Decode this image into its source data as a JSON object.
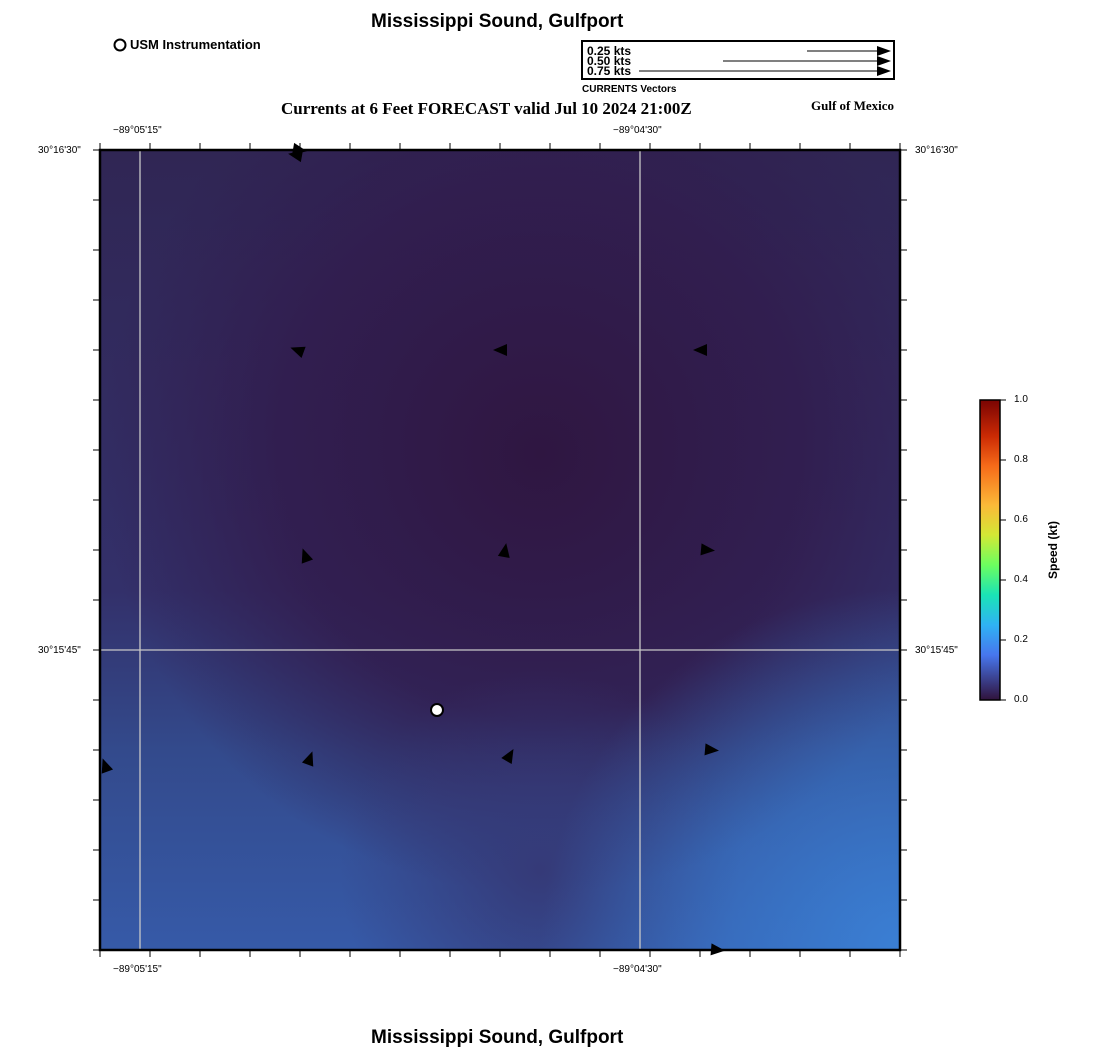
{
  "header": {
    "title": "Mississippi Sound, Gulfport",
    "subtitle": "Currents at 6 Feet FORECAST valid Jul 10 2024 21:00Z",
    "region": "Gulf of Mexico",
    "footer_title": "Mississippi Sound, Gulfport"
  },
  "station_legend": {
    "label": "USM Instrumentation"
  },
  "vector_legend": {
    "title": "CURRENTS Vectors",
    "entries": [
      {
        "label": "0.25 kts",
        "speed": 0.25
      },
      {
        "label": "0.50 kts",
        "speed": 0.5
      },
      {
        "label": "0.75 kts",
        "speed": 0.75
      }
    ]
  },
  "axes": {
    "lon_ticks": [
      "−89°05'15\"",
      "−89°04'30\""
    ],
    "lat_ticks": [
      "30°16'30\"",
      "30°15'45\""
    ]
  },
  "colorbar": {
    "label": "Speed (kt)",
    "min": 0.0,
    "max": 1.0,
    "ticks": [
      "1.0",
      "0.8",
      "0.6",
      "0.4",
      "0.2",
      "0.0"
    ],
    "colors": [
      "#7a0403",
      "#cb2a04",
      "#f66b19",
      "#fbb938",
      "#d3e835",
      "#6cfe5f",
      "#1ae4b6",
      "#2fb2f4",
      "#4776ee",
      "#30123b"
    ]
  },
  "map": {
    "field_colors": {
      "low": "#2f1641",
      "mid": "#34356e",
      "high": "#3a7fd4"
    },
    "vectors": [
      {
        "id": "v1",
        "dir_deg": 190,
        "speed": 0.05
      },
      {
        "id": "v2",
        "dir_deg": 200,
        "speed": 0.05
      },
      {
        "id": "v3",
        "dir_deg": 180,
        "speed": 0.05
      },
      {
        "id": "v4",
        "dir_deg": 180,
        "speed": 0.05
      },
      {
        "id": "v5",
        "dir_deg": 250,
        "speed": 0.05
      },
      {
        "id": "v6",
        "dir_deg": 280,
        "speed": 0.05
      },
      {
        "id": "v7",
        "dir_deg": 5,
        "speed": 0.05
      },
      {
        "id": "v8",
        "dir_deg": 250,
        "speed": 0.05
      },
      {
        "id": "v9",
        "dir_deg": 290,
        "speed": 0.05
      },
      {
        "id": "v10",
        "dir_deg": 300,
        "speed": 0.05
      },
      {
        "id": "v11",
        "dir_deg": 5,
        "speed": 0.05
      },
      {
        "id": "v12",
        "dir_deg": 5,
        "speed": 0.05
      },
      {
        "id": "v13",
        "dir_deg": 10,
        "speed": 0.05
      }
    ]
  }
}
